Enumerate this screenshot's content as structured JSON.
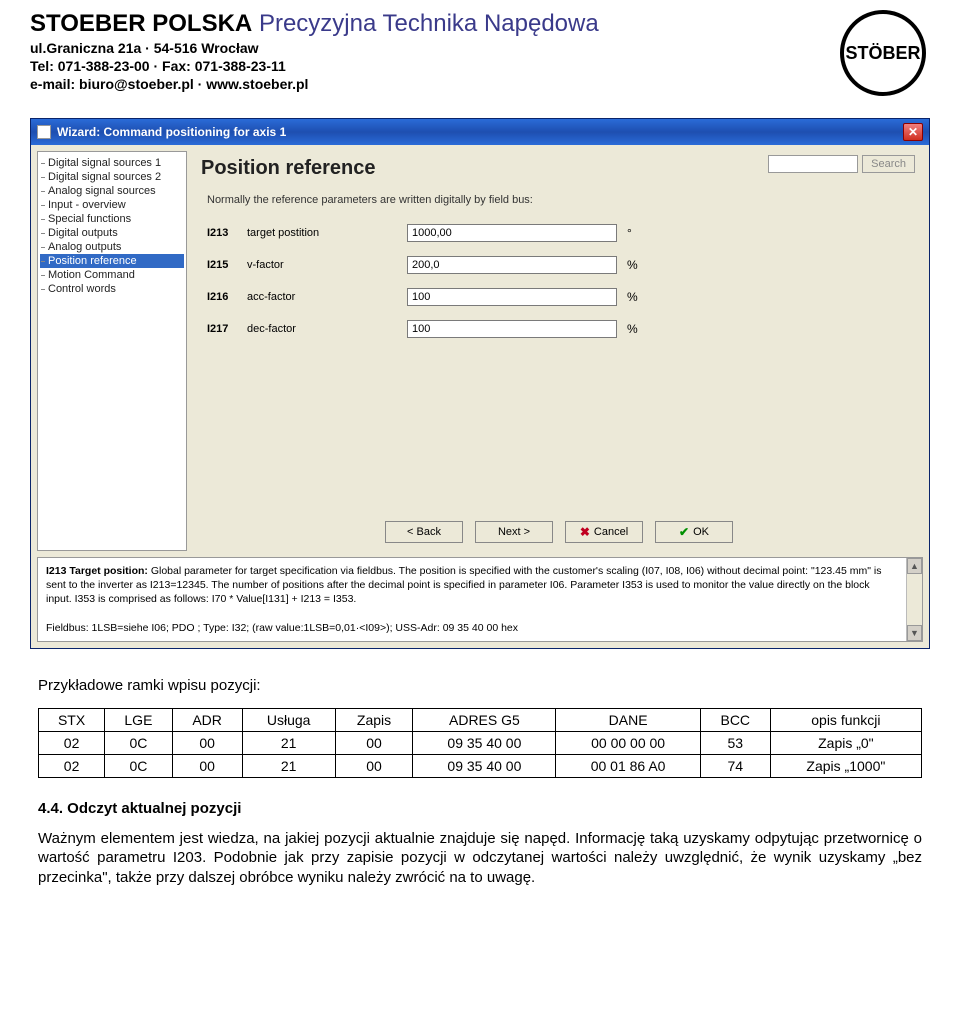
{
  "header": {
    "company_bold": "STOEBER POLSKA",
    "company_sub": "Precyzyjna Technika Napędowa",
    "addr1": "ul.Graniczna 21a · 54-516 Wrocław",
    "tel_line": "Tel: 071-388-23-00 · Fax: 071-388-23-11",
    "email_line": "e-mail: biuro@stoeber.pl · www.stoeber.pl",
    "logo_text": "STÖBER"
  },
  "window": {
    "title": "Wizard: Command positioning for axis 1",
    "tree": [
      "Digital signal sources 1",
      "Digital signal sources 2",
      "Analog signal sources",
      "Input - overview",
      "Special functions",
      "Digital outputs",
      "Analog outputs",
      "Position reference",
      "Motion Command",
      "Control words"
    ],
    "tree_selected_index": 7,
    "heading": "Position reference",
    "search_btn": "Search",
    "desc": "Normally the reference parameters are written digitally by field bus:",
    "params": [
      {
        "code": "I213",
        "label": "target postition",
        "value": "1000,00",
        "unit": "°"
      },
      {
        "code": "I215",
        "label": "v-factor",
        "value": "200,0",
        "unit": "%"
      },
      {
        "code": "I216",
        "label": "acc-factor",
        "value": "100",
        "unit": "%"
      },
      {
        "code": "I217",
        "label": "dec-factor",
        "value": "100",
        "unit": "%"
      }
    ],
    "buttons": {
      "back": "< Back",
      "next": "Next >",
      "cancel": "Cancel",
      "ok": "OK"
    },
    "help": {
      "line1_bold": "I213  Target position:",
      "line1_rest": " Global parameter for target specification via fieldbus. The position is specified with the customer's scaling (I07, I08, I06) without decimal point: \"123.45 mm\" is sent to the inverter as I213=12345. The number of positions after the decimal point is specified in parameter I06. Parameter I353 is used to monitor the value directly on the block input. I353 is comprised as follows: I70 * Value[I131] + I213 = I353.",
      "line2": "Fieldbus: 1LSB=siehe I06; PDO ; Type: I32; (raw value:1LSB=0,01·<I09>);  USS-Adr: 09 35 40 00 hex"
    }
  },
  "body": {
    "intro": "Przykładowe ramki wpisu pozycji:",
    "table": {
      "headers": [
        "STX",
        "LGE",
        "ADR",
        "Usługa",
        "Zapis",
        "ADRES G5",
        "DANE",
        "BCC",
        "opis funkcji"
      ],
      "rows": [
        [
          "02",
          "0C",
          "00",
          "21",
          "00",
          "09 35 40 00",
          "00 00 00 00",
          "53",
          "Zapis „0\""
        ],
        [
          "02",
          "0C",
          "00",
          "21",
          "00",
          "09 35 40 00",
          "00 01 86 A0",
          "74",
          "Zapis „1000\""
        ]
      ]
    },
    "subheading": "4.4. Odczyt aktualnej pozycji",
    "para": "Ważnym elementem jest wiedza, na jakiej pozycji aktualnie znajduje się napęd. Informację taką uzyskamy odpytując przetwornicę o wartość parametru I203. Podobnie jak przy zapisie pozycji w odczytanej wartości należy uwzględnić, że wynik uzyskamy „bez przecinka\", także przy dalszej obróbce wyniku należy zwrócić na to uwagę."
  }
}
